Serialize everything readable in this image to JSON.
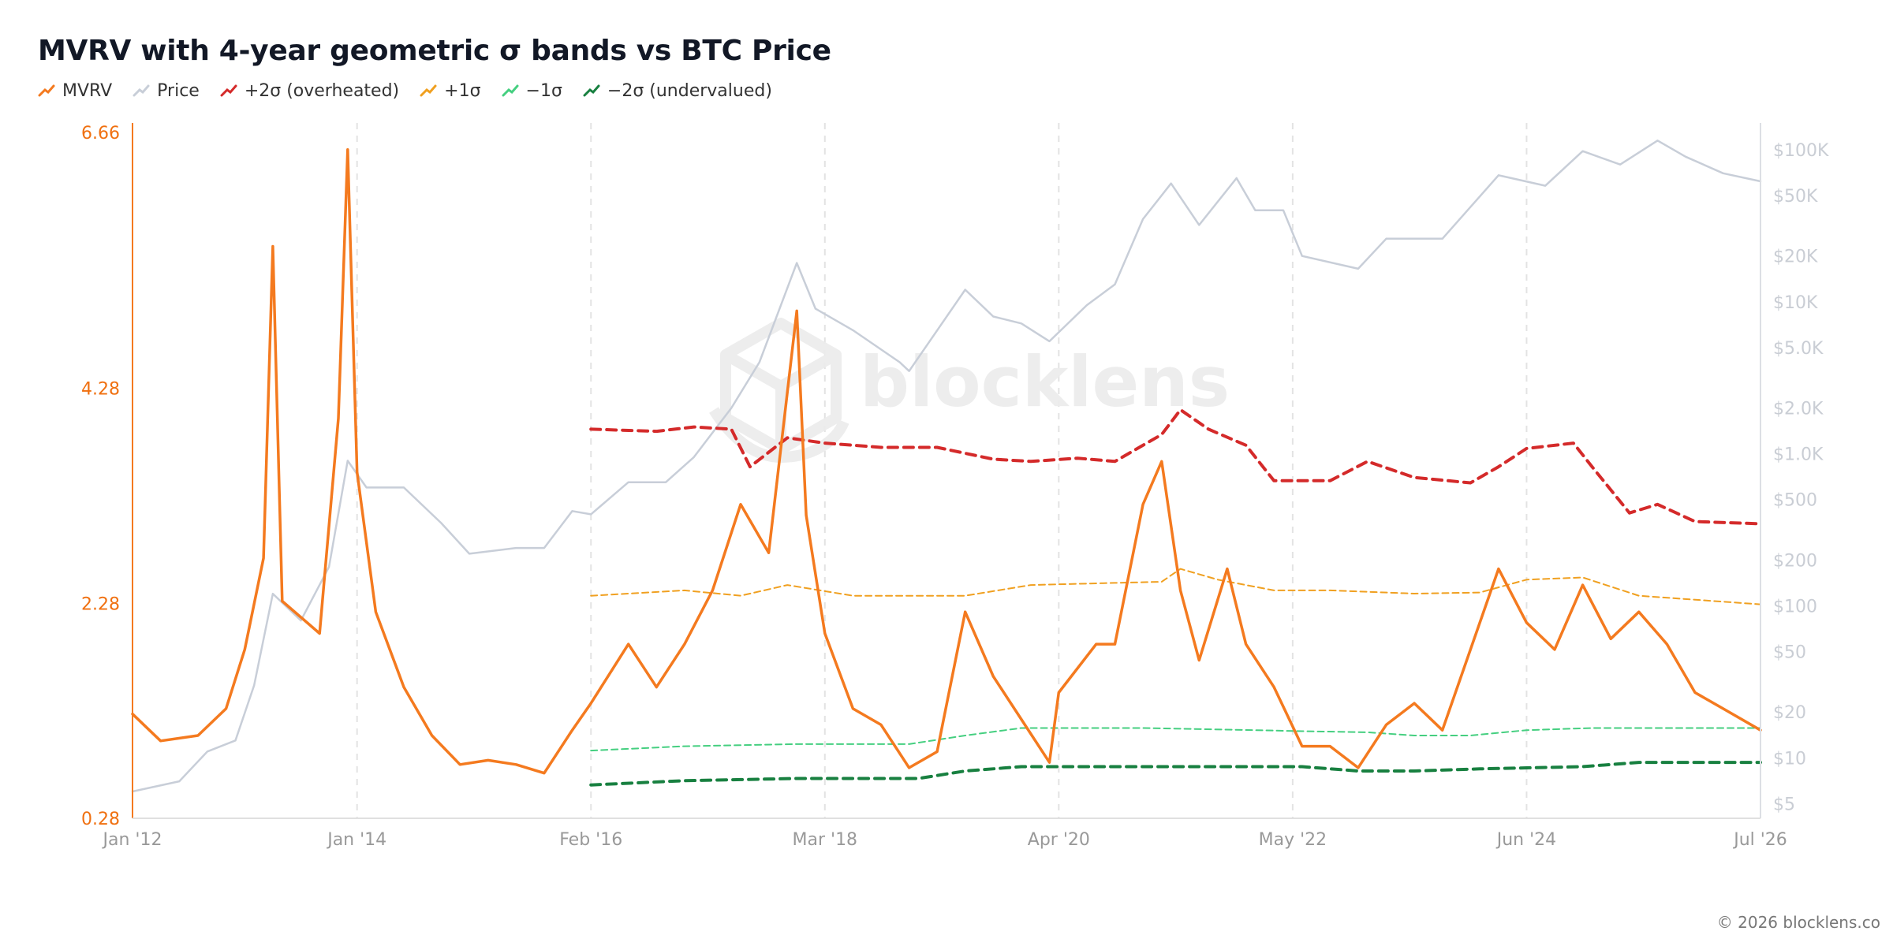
{
  "chart_data": {
    "type": "line",
    "title": "MVRV with 4-year geometric σ bands vs BTC Price",
    "x_range": [
      "2012-01",
      "2026-07"
    ],
    "x_ticks": [
      {
        "date": "2012-01",
        "label": "Jan '12"
      },
      {
        "date": "2014-01",
        "label": "Jan '14"
      },
      {
        "date": "2016-02",
        "label": "Feb '16"
      },
      {
        "date": "2018-03",
        "label": "Mar '18"
      },
      {
        "date": "2020-04",
        "label": "Apr '20"
      },
      {
        "date": "2022-05",
        "label": "May '22"
      },
      {
        "date": "2024-06",
        "label": "Jun '24"
      },
      {
        "date": "2026-07",
        "label": "Jul '26"
      }
    ],
    "y_left": {
      "ylim": [
        0.28,
        6.66
      ],
      "ticks": [
        {
          "value": 6.66,
          "label": "6.66"
        },
        {
          "value": 4.28,
          "label": "4.28"
        },
        {
          "value": 2.28,
          "label": "2.28"
        },
        {
          "value": 0.28,
          "label": "0.28"
        }
      ]
    },
    "y_right": {
      "scale": "log",
      "ylim": [
        4,
        130000
      ],
      "ticks": [
        {
          "value": 100000,
          "label": "$100K"
        },
        {
          "value": 50000,
          "label": "$50K"
        },
        {
          "value": 20000,
          "label": "$20K"
        },
        {
          "value": 10000,
          "label": "$10K"
        },
        {
          "value": 5000,
          "label": "$5.0K"
        },
        {
          "value": 2000,
          "label": "$2.0K"
        },
        {
          "value": 1000,
          "label": "$1.0K"
        },
        {
          "value": 500,
          "label": "$500"
        },
        {
          "value": 200,
          "label": "$200"
        },
        {
          "value": 100,
          "label": "$100"
        },
        {
          "value": 50,
          "label": "$50"
        },
        {
          "value": 20,
          "label": "$20"
        },
        {
          "value": 10,
          "label": "$10"
        },
        {
          "value": 5,
          "label": "$5"
        }
      ]
    },
    "grid": "vertical-dashed",
    "legend_position": "top-left",
    "series": [
      {
        "key": "mvrv",
        "name": "MVRV",
        "axis": "left",
        "color": "#f47a1f",
        "points": [
          [
            "2012-01",
            1.25
          ],
          [
            "2012-04",
            1.0
          ],
          [
            "2012-08",
            1.05
          ],
          [
            "2012-11",
            1.3
          ],
          [
            "2013-01",
            1.85
          ],
          [
            "2013-03",
            2.7
          ],
          [
            "2013-04",
            5.6
          ],
          [
            "2013-05",
            2.3
          ],
          [
            "2013-07",
            2.15
          ],
          [
            "2013-09",
            2.0
          ],
          [
            "2013-11",
            4.0
          ],
          [
            "2013-12",
            6.5
          ],
          [
            "2014-01",
            3.5
          ],
          [
            "2014-03",
            2.2
          ],
          [
            "2014-06",
            1.5
          ],
          [
            "2014-09",
            1.05
          ],
          [
            "2014-12",
            0.78
          ],
          [
            "2015-03",
            0.82
          ],
          [
            "2015-06",
            0.78
          ],
          [
            "2015-09",
            0.7
          ],
          [
            "2015-12",
            1.1
          ],
          [
            "2016-02",
            1.35
          ],
          [
            "2016-06",
            1.9
          ],
          [
            "2016-09",
            1.5
          ],
          [
            "2016-12",
            1.9
          ],
          [
            "2017-03",
            2.4
          ],
          [
            "2017-06",
            3.2
          ],
          [
            "2017-09",
            2.75
          ],
          [
            "2017-12",
            5.0
          ],
          [
            "2018-01",
            3.1
          ],
          [
            "2018-03",
            2.0
          ],
          [
            "2018-06",
            1.3
          ],
          [
            "2018-09",
            1.15
          ],
          [
            "2018-12",
            0.75
          ],
          [
            "2019-03",
            0.9
          ],
          [
            "2019-06",
            2.2
          ],
          [
            "2019-09",
            1.6
          ],
          [
            "2019-12",
            1.2
          ],
          [
            "2020-03",
            0.8
          ],
          [
            "2020-04",
            1.45
          ],
          [
            "2020-08",
            1.9
          ],
          [
            "2020-10",
            1.9
          ],
          [
            "2021-01",
            3.2
          ],
          [
            "2021-03",
            3.6
          ],
          [
            "2021-05",
            2.4
          ],
          [
            "2021-07",
            1.75
          ],
          [
            "2021-10",
            2.6
          ],
          [
            "2021-12",
            1.9
          ],
          [
            "2022-03",
            1.5
          ],
          [
            "2022-06",
            0.95
          ],
          [
            "2022-09",
            0.95
          ],
          [
            "2022-12",
            0.75
          ],
          [
            "2023-03",
            1.15
          ],
          [
            "2023-06",
            1.35
          ],
          [
            "2023-09",
            1.1
          ],
          [
            "2023-12",
            1.85
          ],
          [
            "2024-03",
            2.6
          ],
          [
            "2024-06",
            2.1
          ],
          [
            "2024-09",
            1.85
          ],
          [
            "2024-12",
            2.45
          ],
          [
            "2025-03",
            1.95
          ],
          [
            "2025-06",
            2.2
          ],
          [
            "2025-09",
            1.9
          ],
          [
            "2025-12",
            1.45
          ],
          [
            "2026-03",
            1.3
          ],
          [
            "2026-07",
            1.1
          ]
        ]
      },
      {
        "key": "price",
        "name": "Price",
        "axis": "right",
        "color": "#c8ced8",
        "points": [
          [
            "2012-01",
            6
          ],
          [
            "2012-06",
            7
          ],
          [
            "2012-09",
            11
          ],
          [
            "2012-12",
            13
          ],
          [
            "2013-02",
            30
          ],
          [
            "2013-04",
            120
          ],
          [
            "2013-07",
            80
          ],
          [
            "2013-10",
            180
          ],
          [
            "2013-12",
            900
          ],
          [
            "2014-02",
            600
          ],
          [
            "2014-06",
            600
          ],
          [
            "2014-10",
            350
          ],
          [
            "2015-01",
            220
          ],
          [
            "2015-06",
            240
          ],
          [
            "2015-09",
            240
          ],
          [
            "2015-12",
            420
          ],
          [
            "2016-02",
            400
          ],
          [
            "2016-06",
            650
          ],
          [
            "2016-10",
            650
          ],
          [
            "2017-01",
            950
          ],
          [
            "2017-05",
            2000
          ],
          [
            "2017-08",
            4000
          ],
          [
            "2017-12",
            18000
          ],
          [
            "2018-02",
            9000
          ],
          [
            "2018-06",
            6500
          ],
          [
            "2018-11",
            4000
          ],
          [
            "2018-12",
            3500
          ],
          [
            "2019-06",
            12000
          ],
          [
            "2019-09",
            8000
          ],
          [
            "2019-12",
            7200
          ],
          [
            "2020-03",
            5500
          ],
          [
            "2020-07",
            9500
          ],
          [
            "2020-10",
            13000
          ],
          [
            "2021-01",
            35000
          ],
          [
            "2021-04",
            60000
          ],
          [
            "2021-07",
            32000
          ],
          [
            "2021-11",
            65000
          ],
          [
            "2022-01",
            40000
          ],
          [
            "2022-04",
            40000
          ],
          [
            "2022-06",
            20000
          ],
          [
            "2022-12",
            16500
          ],
          [
            "2023-03",
            26000
          ],
          [
            "2023-09",
            26000
          ],
          [
            "2023-12",
            42000
          ],
          [
            "2024-03",
            68000
          ],
          [
            "2024-08",
            58000
          ],
          [
            "2024-12",
            98000
          ],
          [
            "2025-04",
            80000
          ],
          [
            "2025-08",
            115000
          ],
          [
            "2025-11",
            90000
          ],
          [
            "2026-03",
            70000
          ],
          [
            "2026-07",
            62000
          ]
        ]
      },
      {
        "key": "plus2",
        "name": "+2σ (overheated)",
        "axis": "left",
        "color": "#d42a2a",
        "style": "dashed-bold",
        "points": [
          [
            "2016-02",
            3.9
          ],
          [
            "2016-09",
            3.88
          ],
          [
            "2017-01",
            3.92
          ],
          [
            "2017-05",
            3.9
          ],
          [
            "2017-07",
            3.55
          ],
          [
            "2017-11",
            3.82
          ],
          [
            "2018-03",
            3.77
          ],
          [
            "2018-09",
            3.73
          ],
          [
            "2019-03",
            3.73
          ],
          [
            "2019-09",
            3.62
          ],
          [
            "2020-01",
            3.6
          ],
          [
            "2020-06",
            3.63
          ],
          [
            "2020-10",
            3.6
          ],
          [
            "2021-03",
            3.85
          ],
          [
            "2021-05",
            4.08
          ],
          [
            "2021-08",
            3.9
          ],
          [
            "2021-12",
            3.75
          ],
          [
            "2022-03",
            3.42
          ],
          [
            "2022-09",
            3.42
          ],
          [
            "2023-01",
            3.6
          ],
          [
            "2023-06",
            3.45
          ],
          [
            "2023-12",
            3.4
          ],
          [
            "2024-03",
            3.55
          ],
          [
            "2024-06",
            3.72
          ],
          [
            "2024-11",
            3.77
          ],
          [
            "2025-01",
            3.55
          ],
          [
            "2025-05",
            3.12
          ],
          [
            "2025-08",
            3.2
          ],
          [
            "2025-12",
            3.04
          ],
          [
            "2026-07",
            3.02
          ]
        ]
      },
      {
        "key": "plus1",
        "name": "+1σ",
        "axis": "left",
        "color": "#f0a020",
        "style": "dashed-thin",
        "points": [
          [
            "2016-02",
            2.35
          ],
          [
            "2016-12",
            2.4
          ],
          [
            "2017-06",
            2.35
          ],
          [
            "2017-11",
            2.45
          ],
          [
            "2018-06",
            2.35
          ],
          [
            "2019-06",
            2.35
          ],
          [
            "2020-01",
            2.45
          ],
          [
            "2020-10",
            2.47
          ],
          [
            "2021-03",
            2.48
          ],
          [
            "2021-05",
            2.6
          ],
          [
            "2021-09",
            2.5
          ],
          [
            "2022-03",
            2.4
          ],
          [
            "2022-09",
            2.4
          ],
          [
            "2023-06",
            2.37
          ],
          [
            "2024-01",
            2.38
          ],
          [
            "2024-06",
            2.5
          ],
          [
            "2024-12",
            2.52
          ],
          [
            "2025-06",
            2.35
          ],
          [
            "2026-07",
            2.27
          ]
        ]
      },
      {
        "key": "minus1",
        "name": "−1σ",
        "axis": "left",
        "color": "#45cf80",
        "style": "dashed-thin",
        "points": [
          [
            "2016-02",
            0.91
          ],
          [
            "2016-12",
            0.95
          ],
          [
            "2017-12",
            0.97
          ],
          [
            "2018-12",
            0.97
          ],
          [
            "2019-06",
            1.05
          ],
          [
            "2019-12",
            1.12
          ],
          [
            "2020-06",
            1.12
          ],
          [
            "2021-01",
            1.12
          ],
          [
            "2022-01",
            1.1
          ],
          [
            "2022-06",
            1.09
          ],
          [
            "2023-01",
            1.08
          ],
          [
            "2023-06",
            1.05
          ],
          [
            "2023-12",
            1.05
          ],
          [
            "2024-06",
            1.1
          ],
          [
            "2025-01",
            1.12
          ],
          [
            "2026-07",
            1.12
          ]
        ]
      },
      {
        "key": "minus2",
        "name": "−2σ (undervalued)",
        "axis": "left",
        "color": "#188040",
        "style": "dashed-bold",
        "points": [
          [
            "2016-02",
            0.59
          ],
          [
            "2016-12",
            0.63
          ],
          [
            "2017-06",
            0.64
          ],
          [
            "2017-12",
            0.65
          ],
          [
            "2018-06",
            0.65
          ],
          [
            "2019-01",
            0.65
          ],
          [
            "2019-06",
            0.72
          ],
          [
            "2019-12",
            0.76
          ],
          [
            "2020-06",
            0.76
          ],
          [
            "2021-01",
            0.76
          ],
          [
            "2021-06",
            0.76
          ],
          [
            "2022-01",
            0.76
          ],
          [
            "2022-06",
            0.76
          ],
          [
            "2022-12",
            0.72
          ],
          [
            "2023-06",
            0.72
          ],
          [
            "2024-01",
            0.74
          ],
          [
            "2024-12",
            0.76
          ],
          [
            "2025-06",
            0.8
          ],
          [
            "2026-07",
            0.8
          ]
        ]
      }
    ]
  },
  "watermark": "blocklens",
  "footer": "© 2026 blocklens.co"
}
